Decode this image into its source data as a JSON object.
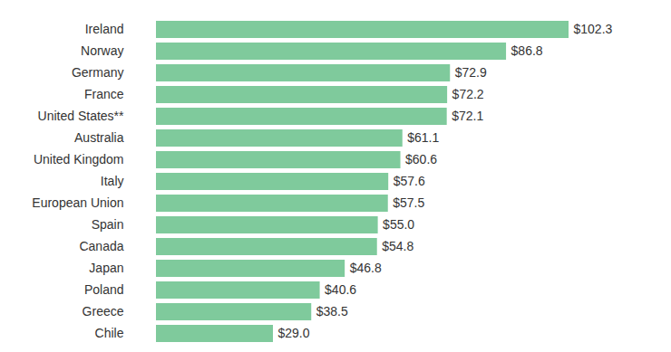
{
  "chart_data": {
    "type": "bar",
    "orientation": "horizontal",
    "categories": [
      "Ireland",
      "Norway",
      "Germany",
      "France",
      "United States**",
      "Australia",
      "United Kingdom",
      "Italy",
      "European Union",
      "Spain",
      "Canada",
      "Japan",
      "Poland",
      "Greece",
      "Chile"
    ],
    "values": [
      102.3,
      86.8,
      72.9,
      72.2,
      72.1,
      61.1,
      60.6,
      57.6,
      57.5,
      55.0,
      54.8,
      46.8,
      40.6,
      38.5,
      29.0
    ],
    "value_labels": [
      "$102.3",
      "$86.8",
      "$72.9",
      "$72.2",
      "$72.1",
      "$61.1",
      "$60.6",
      "$57.6",
      "$57.5",
      "$55.0",
      "$54.8",
      "$46.8",
      "$40.6",
      "$38.5",
      "$29.0"
    ],
    "color": "#7fca9c",
    "data_labels": true,
    "tick_labels": "y"
  }
}
